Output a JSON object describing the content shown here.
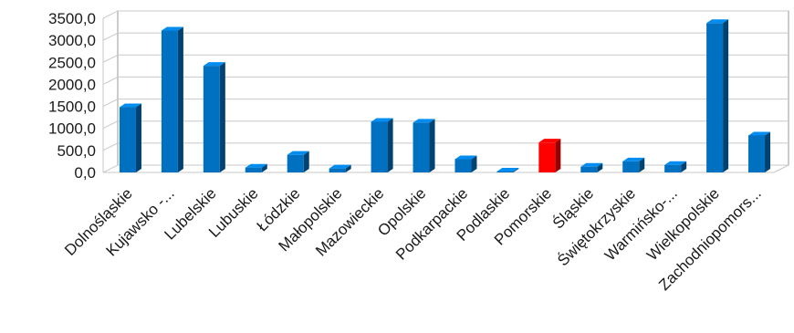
{
  "chart_data": {
    "type": "bar",
    "categories": [
      "Dolnośląskie",
      "Kujawsko -...",
      "Lubelskie",
      "Lubuskie",
      "Łódzkie",
      "Małopolskie",
      "Mazowieckie",
      "Opolskie",
      "Podkarpackie",
      "Podlaskie",
      "Pomorskie",
      "Śląskie",
      "Świętokrzyskie",
      "Warmińsko-...",
      "Wielkopolskie",
      "Zachodniopomors..."
    ],
    "values": [
      1480,
      3220,
      2420,
      110,
      400,
      90,
      1150,
      1130,
      300,
      10,
      680,
      130,
      250,
      170,
      3390,
      840
    ],
    "highlight_index": 10,
    "ylim": [
      0,
      3500
    ],
    "yticks": [
      0,
      500,
      1000,
      1500,
      2000,
      2500,
      3000,
      3500
    ],
    "ytick_labels": [
      "0,0",
      "500,0",
      "1000,0",
      "1500,0",
      "2000,0",
      "2500,0",
      "3000,0",
      "3500,0"
    ],
    "grid": true,
    "colors": {
      "bar": "#0070C0",
      "bar_highlight": "#FF0000"
    }
  }
}
